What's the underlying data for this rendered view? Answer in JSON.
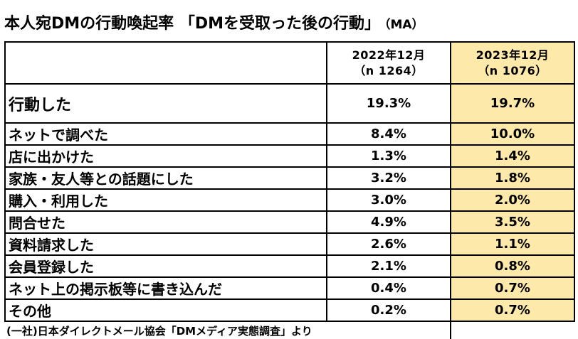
{
  "title": "本人宛DMの行動喚起率 「DMを受取った後の行動」",
  "title_suffix": "（MA）",
  "chart_data": {
    "type": "table",
    "columns": [
      {
        "period": "2022年12月",
        "n": "（n 1264）"
      },
      {
        "period": "2023年12月",
        "n": "（n 1076）"
      }
    ],
    "rows": [
      {
        "label": "行動した",
        "values": [
          "19.3%",
          "19.7%"
        ]
      },
      {
        "label": "ネットで調べた",
        "values": [
          "8.4%",
          "10.0%"
        ]
      },
      {
        "label": "店に出かけた",
        "values": [
          "1.3%",
          "1.4%"
        ]
      },
      {
        "label": "家族・友人等との話題にした",
        "values": [
          "3.2%",
          "1.8%"
        ]
      },
      {
        "label": "購入・利用した",
        "values": [
          "3.0%",
          "2.0%"
        ]
      },
      {
        "label": "問合せた",
        "values": [
          "4.9%",
          "3.5%"
        ]
      },
      {
        "label": "資料請求した",
        "values": [
          "2.6%",
          "1.1%"
        ]
      },
      {
        "label": "会員登録した",
        "values": [
          "2.1%",
          "0.8%"
        ]
      },
      {
        "label": "ネット上の掲示板等に書き込んだ",
        "values": [
          "0.4%",
          "0.7%"
        ]
      },
      {
        "label": "その他",
        "values": [
          "0.2%",
          "0.7%"
        ]
      }
    ],
    "highlight_color": "#fde9a9"
  },
  "source": "(一社)日本ダイレクトメール協会「DMメディア実態調査」より"
}
